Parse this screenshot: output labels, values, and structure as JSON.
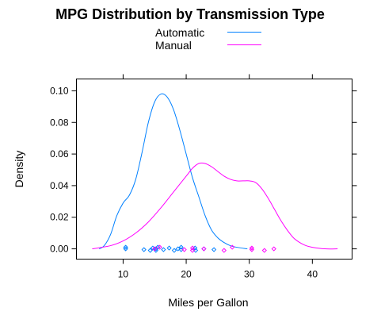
{
  "chart_data": {
    "type": "line",
    "title": "MPG Distribution by Transmission Type",
    "xlabel": "Miles per Gallon",
    "ylabel": "Density",
    "xlim": [
      2.6,
      46.3
    ],
    "ylim": [
      -0.0065,
      0.1075
    ],
    "xticks": [
      10,
      20,
      30,
      40
    ],
    "yticks": [
      0.0,
      0.02,
      0.04,
      0.06,
      0.08,
      0.1
    ],
    "ytick_labels": [
      "0.00",
      "0.02",
      "0.04",
      "0.06",
      "0.08",
      "0.10"
    ],
    "legend_position": "top",
    "grid": false,
    "series": [
      {
        "name": "Automatic",
        "color": "#0080ff",
        "x": [
          6.2,
          7,
          8,
          9,
          10,
          11,
          12,
          13,
          14,
          15,
          16,
          17,
          18,
          19,
          20,
          21,
          22,
          23,
          24,
          25,
          26,
          27,
          28,
          29.7
        ],
        "y": [
          0.0,
          0.002,
          0.009,
          0.021,
          0.029,
          0.034,
          0.044,
          0.061,
          0.08,
          0.093,
          0.098,
          0.096,
          0.088,
          0.075,
          0.06,
          0.045,
          0.033,
          0.021,
          0.012,
          0.007,
          0.004,
          0.002,
          0.001,
          0.0
        ],
        "rug": [
          10.4,
          10.4,
          13.3,
          14.3,
          14.7,
          15.2,
          15.2,
          15.5,
          16.4,
          17.3,
          18.1,
          18.7,
          19.2,
          19.2,
          21.4,
          21.5,
          22.8,
          24.4
        ]
      },
      {
        "name": "Manual",
        "color": "#ff00ff",
        "x": [
          5.1,
          8,
          10,
          12,
          14,
          16,
          18,
          20,
          21,
          22,
          23,
          24,
          25,
          26,
          27,
          28,
          29,
          30,
          31,
          32,
          33,
          34,
          35,
          36,
          37,
          38,
          39,
          40,
          42,
          44
        ],
        "y": [
          0.0,
          0.002,
          0.005,
          0.01,
          0.017,
          0.026,
          0.036,
          0.046,
          0.051,
          0.054,
          0.054,
          0.052,
          0.049,
          0.046,
          0.044,
          0.043,
          0.043,
          0.043,
          0.042,
          0.038,
          0.032,
          0.025,
          0.018,
          0.012,
          0.007,
          0.004,
          0.002,
          0.001,
          0.0,
          0.0
        ],
        "rug": [
          15.0,
          15.8,
          19.7,
          21.0,
          21.0,
          22.8,
          26.0,
          27.3,
          30.4,
          30.4,
          32.4,
          33.9
        ]
      }
    ]
  }
}
